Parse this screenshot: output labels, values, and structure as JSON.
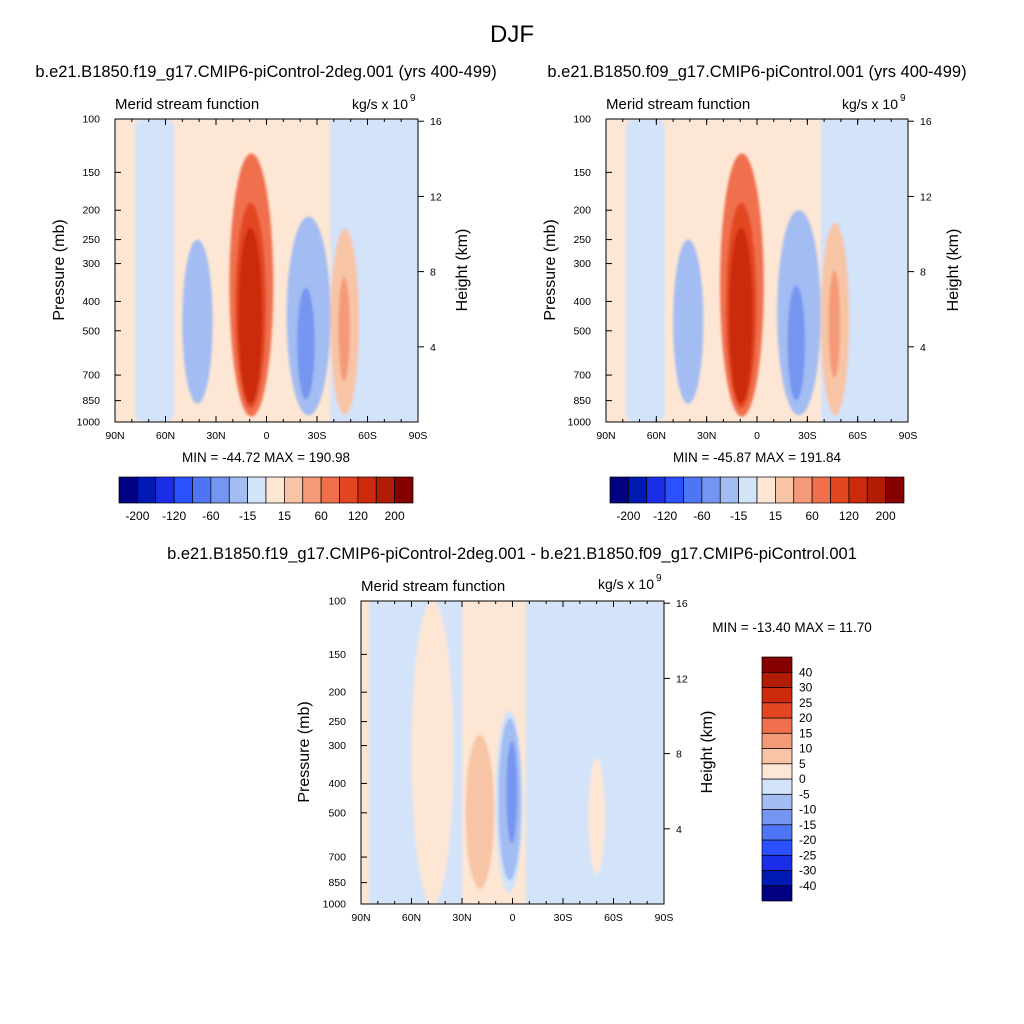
{
  "page_title": "DJF",
  "colors": {
    "scale": [
      "#000080",
      "#0019b3",
      "#1a2ee8",
      "#2a50ff",
      "#4d75f5",
      "#7595f0",
      "#a3bcf2",
      "#d2e3fa",
      "#fde6d4",
      "#f8c4a6",
      "#f59a78",
      "#f0704d",
      "#e24722",
      "#cc2a0c",
      "#b11c05",
      "#860000"
    ]
  },
  "panels": [
    {
      "heading": "b.e21.B1850.f19_g17.CMIP6-piControl-2deg.001 (yrs 400-499)",
      "left_label": "Merid stream function",
      "units": "kg/s x 10",
      "units_exp": "9",
      "min_max": "MIN = -44.72  MAX = 190.98",
      "colorbar_labels": [
        "-200",
        "-120",
        "-60",
        "-15",
        "15",
        "60",
        "120",
        "200"
      ]
    },
    {
      "heading": "b.e21.B1850.f09_g17.CMIP6-piControl.001 (yrs 400-499)",
      "left_label": "Merid stream function",
      "units": "kg/s x 10",
      "units_exp": "9",
      "min_max": "MIN = -45.87  MAX = 191.84",
      "colorbar_labels": [
        "-200",
        "-120",
        "-60",
        "-15",
        "15",
        "60",
        "120",
        "200"
      ]
    },
    {
      "heading": "b.e21.B1850.f19_g17.CMIP6-piControl-2deg.001 - b.e21.B1850.f09_g17.CMIP6-piControl.001",
      "left_label": "Merid stream function",
      "units": "kg/s x 10",
      "units_exp": "9",
      "min_max": "MIN = -13.40  MAX =  11.70",
      "colorbar_labels": [
        "40",
        "30",
        "25",
        "20",
        "15",
        "10",
        "5",
        "0",
        "-5",
        "-10",
        "-15",
        "-20",
        "-25",
        "-30",
        "-40"
      ]
    }
  ],
  "chart_data": [
    {
      "type": "heatmap",
      "title": "Merid stream function",
      "xlabel": "",
      "ylabel": "Pressure (mb)",
      "y2label": "Height (km)",
      "x_ticks": [
        "90N",
        "60N",
        "30N",
        "0",
        "30S",
        "60S",
        "90S"
      ],
      "x_range": [
        90,
        -90
      ],
      "y_ticks": [
        "100",
        "150",
        "200",
        "250",
        "300",
        "400",
        "500",
        "700",
        "850",
        "1000"
      ],
      "y_range": [
        100,
        1000
      ],
      "y2_ticks": [
        "16",
        "12",
        "8",
        "4"
      ],
      "levels": [
        -200,
        -160,
        -120,
        -90,
        -60,
        -40,
        -15,
        0,
        15,
        40,
        60,
        90,
        120,
        160,
        200
      ],
      "min": -44.72,
      "max": 190.98,
      "cells": [
        {
          "lat_range": [
            50,
            32
          ],
          "p_range": [
            250,
            870
          ],
          "value": -20,
          "core": {
            "lat": 40,
            "p": 450,
            "value": -40
          }
        },
        {
          "lat_range": [
            22,
            -4
          ],
          "p_range": [
            130,
            960
          ],
          "value": 60,
          "core": {
            "lat": 10,
            "p": 520,
            "value": 180
          }
        },
        {
          "lat_range": [
            -12,
            -38
          ],
          "p_range": [
            210,
            950
          ],
          "value": -25,
          "core": {
            "lat": -23,
            "p": 580,
            "value": -45
          }
        },
        {
          "lat_range": [
            -38,
            -55
          ],
          "p_range": [
            230,
            950
          ],
          "value": 30,
          "core": {
            "lat": -46,
            "p": 500,
            "value": 45
          }
        }
      ]
    },
    {
      "type": "heatmap",
      "title": "Merid stream function",
      "xlabel": "",
      "ylabel": "Pressure (mb)",
      "y2label": "Height (km)",
      "x_ticks": [
        "90N",
        "60N",
        "30N",
        "0",
        "30S",
        "60S",
        "90S"
      ],
      "x_range": [
        90,
        -90
      ],
      "y_ticks": [
        "100",
        "150",
        "200",
        "250",
        "300",
        "400",
        "500",
        "700",
        "850",
        "1000"
      ],
      "y_range": [
        100,
        1000
      ],
      "y2_ticks": [
        "16",
        "12",
        "8",
        "4"
      ],
      "levels": [
        -200,
        -160,
        -120,
        -90,
        -60,
        -40,
        -15,
        0,
        15,
        40,
        60,
        90,
        120,
        160,
        200
      ],
      "min": -45.87,
      "max": 191.84,
      "cells": [
        {
          "lat_range": [
            50,
            32
          ],
          "p_range": [
            250,
            870
          ],
          "value": -20,
          "core": {
            "lat": 40,
            "p": 420,
            "value": -40
          }
        },
        {
          "lat_range": [
            22,
            -4
          ],
          "p_range": [
            130,
            960
          ],
          "value": 60,
          "core": {
            "lat": 10,
            "p": 520,
            "value": 180
          }
        },
        {
          "lat_range": [
            -12,
            -38
          ],
          "p_range": [
            200,
            950
          ],
          "value": -25,
          "core": {
            "lat": -23,
            "p": 580,
            "value": -45
          }
        },
        {
          "lat_range": [
            -38,
            -55
          ],
          "p_range": [
            220,
            950
          ],
          "value": 30,
          "core": {
            "lat": -46,
            "p": 480,
            "value": 45
          }
        }
      ]
    },
    {
      "type": "heatmap",
      "title": "Merid stream function",
      "xlabel": "",
      "ylabel": "Pressure (mb)",
      "y2label": "Height (km)",
      "x_ticks": [
        "90N",
        "60N",
        "30N",
        "0",
        "30S",
        "60S",
        "90S"
      ],
      "x_range": [
        90,
        -90
      ],
      "y_ticks": [
        "100",
        "150",
        "200",
        "250",
        "300",
        "400",
        "500",
        "700",
        "850",
        "1000"
      ],
      "y_range": [
        100,
        1000
      ],
      "y2_ticks": [
        "16",
        "12",
        "8",
        "4"
      ],
      "levels": [
        -40,
        -30,
        -25,
        -20,
        -15,
        -10,
        -5,
        0,
        5,
        10,
        15,
        20,
        25,
        30,
        40
      ],
      "min": -13.4,
      "max": 11.7,
      "cells": [
        {
          "lat_range": [
            30,
            10
          ],
          "p_range": [
            250,
            930
          ],
          "value": 4,
          "core": {
            "lat": 17,
            "p": 560,
            "value": 11
          }
        },
        {
          "lat_range": [
            10,
            -6
          ],
          "p_range": [
            230,
            920
          ],
          "value": -4,
          "core": {
            "lat": 0,
            "p": 420,
            "value": -13
          }
        },
        {
          "lat_range": [
            60,
            35
          ],
          "p_range": [
            100,
            1000
          ],
          "value": 2,
          "core": {
            "lat": 50,
            "p": 600,
            "value": 3
          }
        },
        {
          "lat_range": [
            -45,
            -55
          ],
          "p_range": [
            330,
            800
          ],
          "value": 3,
          "core": {
            "lat": -49,
            "p": 450,
            "value": 4
          }
        }
      ]
    }
  ]
}
